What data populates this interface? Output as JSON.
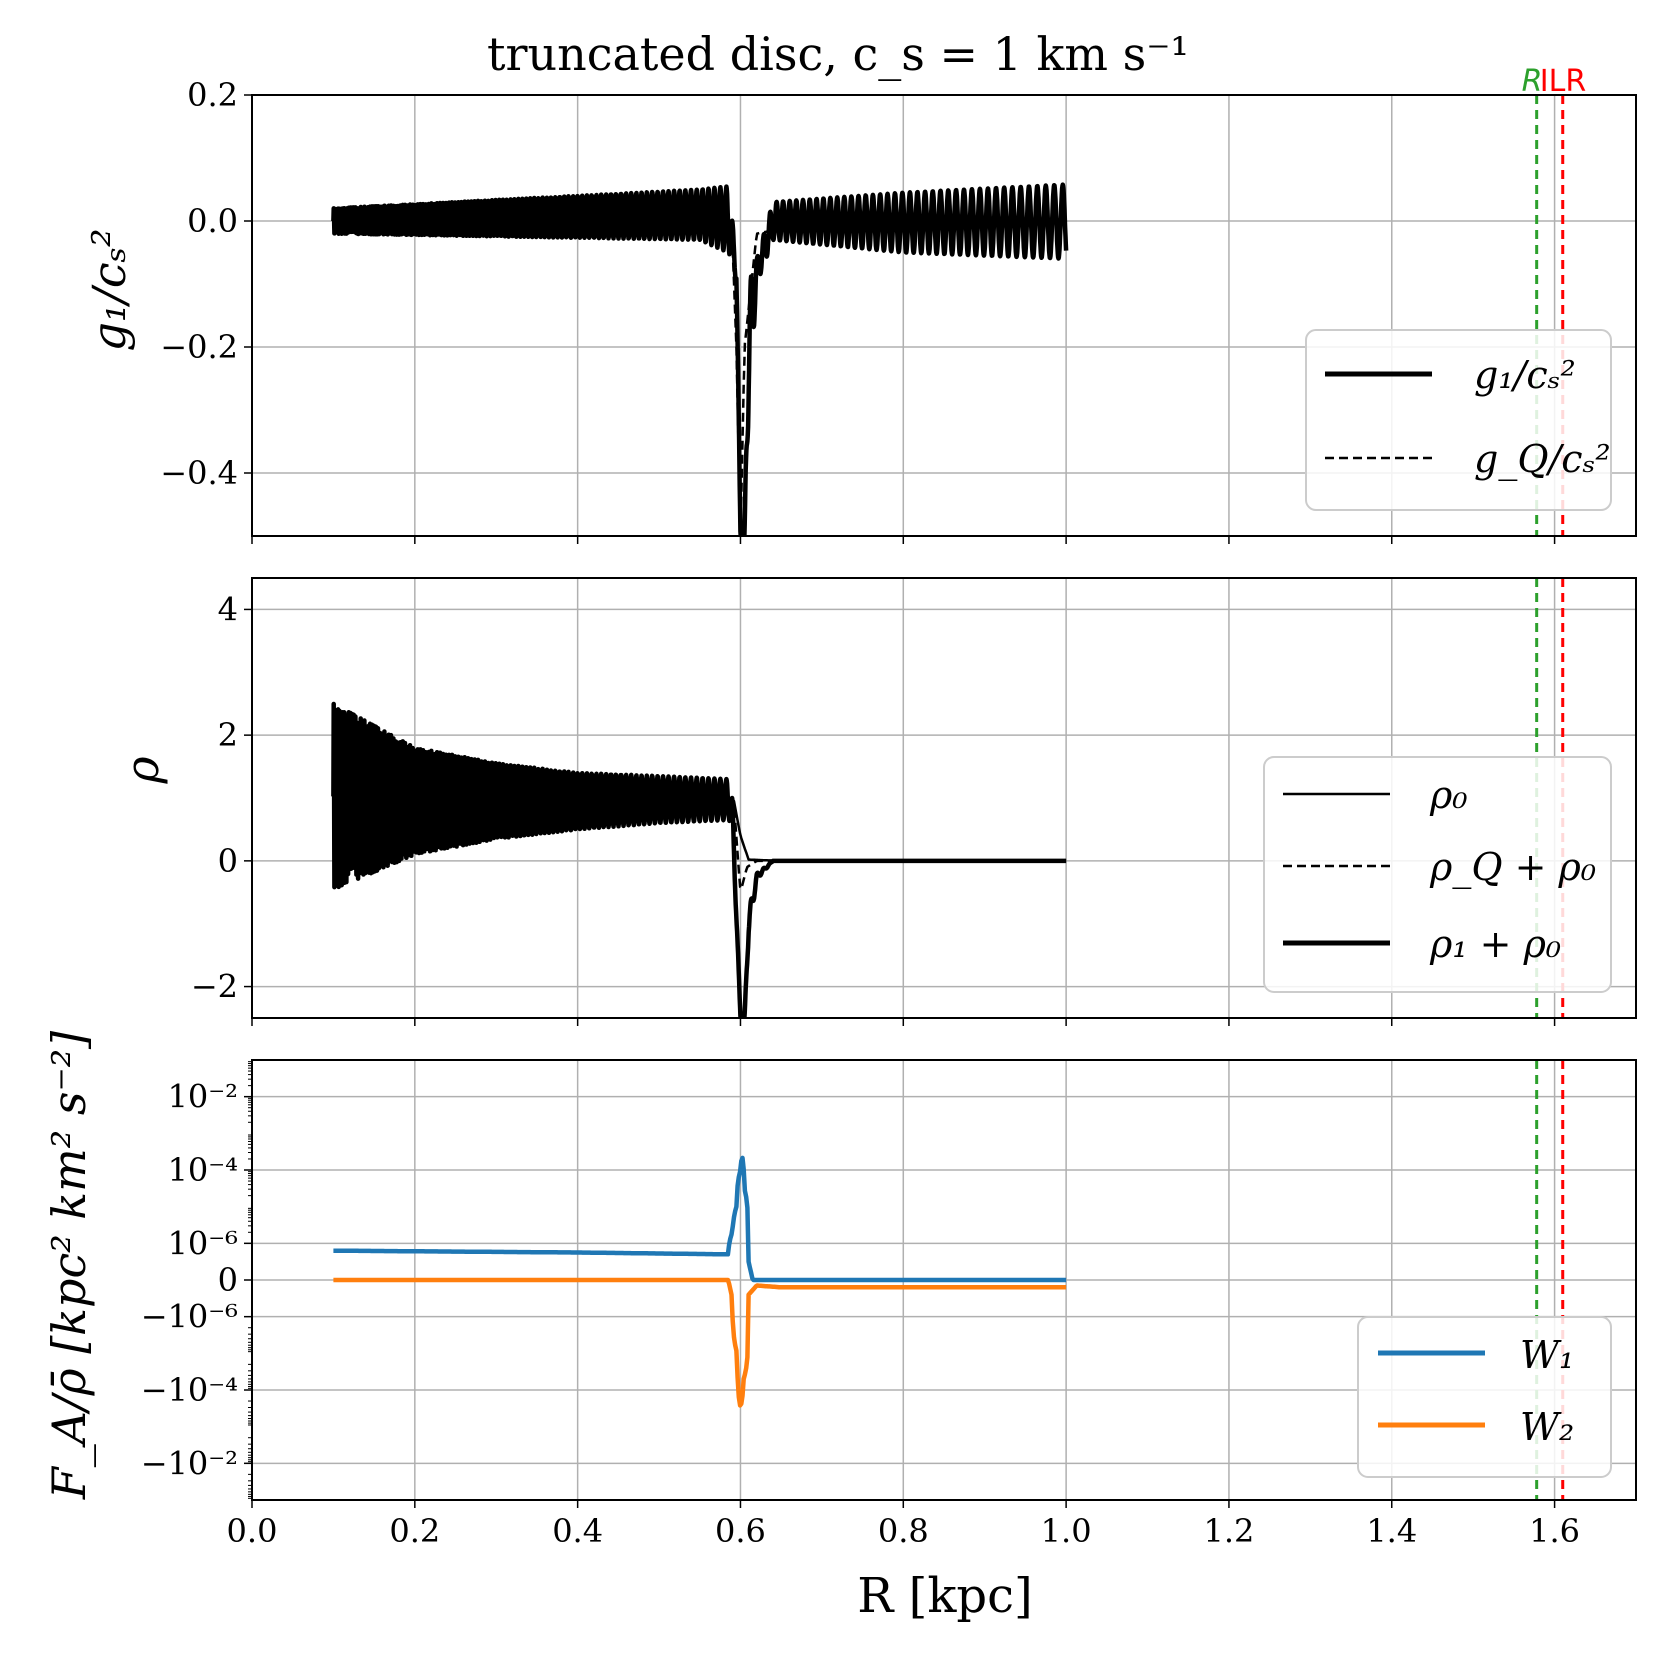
{
  "title": "truncated disc, c_s = 1 km s⁻¹",
  "xlabel": "R [kpc]",
  "markers": [
    {
      "label": "R",
      "x": 1.578,
      "color": "#2ca02c"
    },
    {
      "label": "ILR",
      "x": 1.61,
      "color": "#ff0000"
    }
  ],
  "colors": {
    "blue": "#1f77b4",
    "orange": "#ff7f0e",
    "green": "#2ca02c",
    "red": "#ff0000",
    "black": "#000000",
    "grid": "#b0b0b0"
  },
  "chart_data": [
    {
      "type": "line",
      "panel": "top",
      "title": "truncated disc, c_s = 1 km s⁻¹",
      "ylabel": "g₁/cₛ²",
      "xlim": [
        0.0,
        1.7
      ],
      "ylim": [
        -0.5,
        0.2
      ],
      "xticks": [
        0.0,
        0.2,
        0.4,
        0.6,
        0.8,
        1.0,
        1.2,
        1.4,
        1.6
      ],
      "yticks": [
        0.2,
        0.0,
        -0.2,
        -0.4
      ],
      "ytick_labels": [
        "0.2",
        "0.0",
        "−0.2",
        "−0.4"
      ],
      "grid": true,
      "legend": "center-right",
      "series": [
        {
          "name": "g₁/cₛ²",
          "style": "solid-thick",
          "x": [
            0.1,
            0.55,
            0.585,
            0.59,
            0.595,
            0.6,
            0.605,
            0.61,
            0.62,
            0.64,
            0.8,
            1.0
          ],
          "envelope_max": [
            0.02,
            0.05,
            0.055,
            0.0,
            -0.05,
            -0.5,
            -0.5,
            -0.1,
            -0.06,
            0.03,
            0.045,
            0.058
          ],
          "envelope_min": [
            -0.02,
            -0.03,
            -0.05,
            -0.06,
            -0.1,
            -0.5,
            -0.5,
            -0.3,
            -0.1,
            -0.03,
            -0.05,
            -0.06
          ]
        },
        {
          "name": "g_Q/cₛ²",
          "style": "dashed",
          "x": [
            0.1,
            0.58,
            0.59,
            0.595,
            0.6,
            0.605,
            0.62,
            0.7,
            1.0
          ],
          "values": [
            0.0,
            0.0,
            -0.03,
            -0.2,
            -0.5,
            -0.2,
            -0.02,
            0.0,
            0.0
          ]
        }
      ]
    },
    {
      "type": "line",
      "panel": "middle",
      "ylabel": "ρ",
      "xlim": [
        0.0,
        1.7
      ],
      "ylim": [
        -2.5,
        4.5
      ],
      "yticks": [
        4,
        2,
        0,
        -2
      ],
      "ytick_labels": [
        "4",
        "2",
        "0",
        "−2"
      ],
      "grid": true,
      "legend": "center-right",
      "series": [
        {
          "name": "ρ₀",
          "style": "solid-thin",
          "x": [
            0.1,
            0.3,
            0.5,
            0.585,
            0.592,
            0.6,
            0.61,
            0.65,
            1.0
          ],
          "values": [
            1.0,
            0.9,
            0.85,
            0.85,
            0.95,
            0.4,
            0.02,
            0.0,
            0.0
          ]
        },
        {
          "name": "ρ_Q + ρ₀",
          "style": "dashed",
          "x": [
            0.1,
            0.58,
            0.592,
            0.6,
            0.608,
            0.62,
            1.0
          ],
          "values": [
            1.0,
            0.85,
            0.9,
            -0.5,
            -0.1,
            0.0,
            0.0
          ]
        },
        {
          "name": "ρ₁ + ρ₀",
          "style": "solid-thick",
          "x": [
            0.1,
            0.2,
            0.3,
            0.4,
            0.5,
            0.585,
            0.59,
            0.6,
            0.605,
            0.61,
            0.62,
            0.64,
            1.0
          ],
          "envelope_max": [
            2.5,
            1.8,
            1.55,
            1.4,
            1.35,
            1.3,
            1.0,
            -2.5,
            -2.5,
            -0.8,
            -0.2,
            0.0,
            0.0
          ],
          "envelope_min": [
            -0.45,
            0.1,
            0.35,
            0.5,
            0.6,
            0.65,
            0.6,
            -2.5,
            -2.5,
            -1.2,
            -0.3,
            0.0,
            0.0
          ]
        }
      ]
    },
    {
      "type": "line",
      "panel": "bottom",
      "ylabel": "F_A/ρ̄ [kpc² km² s⁻²]",
      "yscale": "symlog",
      "xlim": [
        0.0,
        1.7
      ],
      "ylim": [
        -0.1,
        0.1
      ],
      "yticks": [
        0.01,
        0.0001,
        1e-06,
        0,
        -1e-06,
        -0.0001,
        -0.01
      ],
      "ytick_labels": [
        "10⁻²",
        "10⁻⁴",
        "10⁻⁶",
        "0",
        "−10⁻⁶",
        "−10⁻⁴",
        "−10⁻²"
      ],
      "xticks": [
        0.0,
        0.2,
        0.4,
        0.6,
        0.8,
        1.0,
        1.2,
        1.4,
        1.6
      ],
      "xtick_labels": [
        "0.0",
        "0.2",
        "0.4",
        "0.6",
        "0.8",
        "1.0",
        "1.2",
        "1.4",
        "1.6"
      ],
      "xlabel": "R [kpc]",
      "grid": true,
      "legend": "bottom-right",
      "series": [
        {
          "name": "W₁",
          "color": "#1f77b4",
          "x": [
            0.1,
            0.4,
            0.585,
            0.59,
            0.595,
            0.6,
            0.602,
            0.605,
            0.61,
            0.615,
            1.0
          ],
          "values": [
            8e-07,
            7.5e-07,
            7e-07,
            2e-06,
            1e-05,
            0.0001,
            0.00025,
            3e-05,
            5e-07,
            0.0,
            0.0
          ]
        },
        {
          "name": "W₂",
          "color": "#ff7f0e",
          "x": [
            0.1,
            0.4,
            0.585,
            0.59,
            0.596,
            0.6,
            0.604,
            0.61,
            0.62,
            0.65,
            1.0
          ],
          "values": [
            0.0,
            0.0,
            0.0,
            -5e-07,
            -1e-05,
            -0.0003,
            -5e-05,
            -4e-07,
            -1.5e-07,
            -2e-07,
            -2e-07
          ]
        }
      ]
    }
  ]
}
